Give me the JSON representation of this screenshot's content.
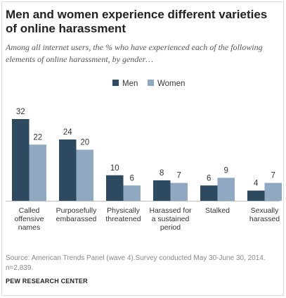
{
  "title": "Men and women experience different varieties of online harassment",
  "subtitle": "Among all internet users, the % who have experienced each of the following elements of online harassment, by gender…",
  "source": "Source: American Trends Panel (wave 4).Survey conducted May 30-June 30, 2014. n=2,839.",
  "footer": "PEW RESEARCH CENTER",
  "colors": {
    "men": "#2e4a61",
    "women": "#8ea9c1"
  },
  "chart_data": {
    "type": "bar",
    "categories": [
      [
        "Called",
        "offensive",
        "names"
      ],
      [
        "Purposefully",
        "embarassed"
      ],
      [
        "Physically",
        "threatened"
      ],
      [
        "Harassed for",
        "a sustained",
        "period"
      ],
      [
        "Stalked"
      ],
      [
        "Sexually",
        "harassed"
      ]
    ],
    "series": [
      {
        "name": "Men",
        "values": [
          32,
          24,
          10,
          8,
          6,
          4
        ]
      },
      {
        "name": "Women",
        "values": [
          22,
          20,
          6,
          7,
          9,
          7
        ]
      }
    ],
    "ylim": [
      0,
      32
    ],
    "grid": false,
    "legend": "top-center",
    "data_labels": true
  }
}
